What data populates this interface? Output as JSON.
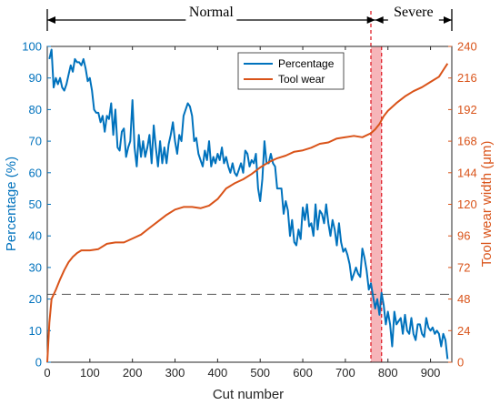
{
  "chart_data": {
    "type": "line",
    "xlabel": "Cut number",
    "xlim": [
      0,
      950
    ],
    "xticks": [
      0,
      100,
      200,
      300,
      400,
      500,
      600,
      700,
      800,
      900
    ],
    "y_left": {
      "label": "Percentage (%)",
      "lim": [
        0,
        100
      ],
      "ticks": [
        0,
        10,
        20,
        30,
        40,
        50,
        60,
        70,
        80,
        90,
        100
      ],
      "color": "#0072BD"
    },
    "y_right": {
      "label": "Tool wear width (μm)",
      "lim": [
        0,
        240
      ],
      "ticks": [
        0,
        24,
        48,
        72,
        96,
        120,
        144,
        168,
        192,
        216,
        240
      ],
      "color": "#D95319"
    },
    "threshold_percentage": 21.5,
    "severe_band_x": [
      760,
      785
    ],
    "regions": [
      {
        "label": "Normal",
        "x_start": 0,
        "x_end": 770
      },
      {
        "label": "Severe",
        "x_start": 770,
        "x_end": 950
      }
    ],
    "legend_position": "top-center",
    "series": [
      {
        "name": "Percentage",
        "axis": "left",
        "color": "#0072BD",
        "points": [
          [
            5,
            96
          ],
          [
            10,
            99
          ],
          [
            15,
            87
          ],
          [
            20,
            90
          ],
          [
            25,
            88
          ],
          [
            30,
            90
          ],
          [
            35,
            87
          ],
          [
            40,
            86
          ],
          [
            45,
            88
          ],
          [
            50,
            91
          ],
          [
            55,
            94
          ],
          [
            60,
            92
          ],
          [
            65,
            96
          ],
          [
            70,
            95
          ],
          [
            75,
            95
          ],
          [
            80,
            94
          ],
          [
            85,
            96
          ],
          [
            90,
            93
          ],
          [
            95,
            89
          ],
          [
            100,
            90
          ],
          [
            105,
            86
          ],
          [
            110,
            80
          ],
          [
            115,
            79
          ],
          [
            120,
            79
          ],
          [
            125,
            76
          ],
          [
            130,
            78
          ],
          [
            135,
            73
          ],
          [
            140,
            78
          ],
          [
            145,
            77
          ],
          [
            150,
            82
          ],
          [
            155,
            72
          ],
          [
            160,
            80
          ],
          [
            165,
            68
          ],
          [
            170,
            67
          ],
          [
            175,
            73
          ],
          [
            180,
            74
          ],
          [
            185,
            65
          ],
          [
            190,
            68
          ],
          [
            195,
            70
          ],
          [
            200,
            83
          ],
          [
            205,
            68
          ],
          [
            210,
            62
          ],
          [
            215,
            72
          ],
          [
            220,
            65
          ],
          [
            225,
            70
          ],
          [
            230,
            65
          ],
          [
            235,
            68
          ],
          [
            240,
            72
          ],
          [
            245,
            63
          ],
          [
            250,
            75
          ],
          [
            255,
            68
          ],
          [
            260,
            62
          ],
          [
            265,
            70
          ],
          [
            270,
            63
          ],
          [
            275,
            68
          ],
          [
            280,
            63
          ],
          [
            285,
            69
          ],
          [
            290,
            72
          ],
          [
            295,
            76
          ],
          [
            300,
            70
          ],
          [
            305,
            66
          ],
          [
            310,
            72
          ],
          [
            315,
            70
          ],
          [
            320,
            78
          ],
          [
            325,
            80
          ],
          [
            330,
            82
          ],
          [
            335,
            81
          ],
          [
            340,
            78
          ],
          [
            345,
            70
          ],
          [
            350,
            71
          ],
          [
            355,
            66
          ],
          [
            360,
            64
          ],
          [
            365,
            62
          ],
          [
            370,
            67
          ],
          [
            375,
            64
          ],
          [
            380,
            70
          ],
          [
            385,
            62
          ],
          [
            390,
            65
          ],
          [
            395,
            63
          ],
          [
            400,
            66
          ],
          [
            405,
            64
          ],
          [
            410,
            68
          ],
          [
            415,
            63
          ],
          [
            420,
            65
          ],
          [
            425,
            62
          ],
          [
            430,
            60
          ],
          [
            435,
            63
          ],
          [
            440,
            60
          ],
          [
            445,
            59
          ],
          [
            450,
            61
          ],
          [
            455,
            63
          ],
          [
            460,
            60
          ],
          [
            465,
            67
          ],
          [
            470,
            66
          ],
          [
            475,
            62
          ],
          [
            480,
            64
          ],
          [
            485,
            63
          ],
          [
            490,
            66
          ],
          [
            495,
            55
          ],
          [
            500,
            51
          ],
          [
            505,
            58
          ],
          [
            510,
            70
          ],
          [
            515,
            63
          ],
          [
            520,
            63
          ],
          [
            525,
            66
          ],
          [
            530,
            63
          ],
          [
            535,
            62
          ],
          [
            540,
            55
          ],
          [
            545,
            55
          ],
          [
            550,
            55
          ],
          [
            555,
            47
          ],
          [
            560,
            51
          ],
          [
            565,
            48
          ],
          [
            570,
            40
          ],
          [
            575,
            45
          ],
          [
            580,
            38
          ],
          [
            585,
            37
          ],
          [
            590,
            42
          ],
          [
            595,
            39
          ],
          [
            600,
            49
          ],
          [
            605,
            45
          ],
          [
            610,
            50
          ],
          [
            615,
            43
          ],
          [
            620,
            44
          ],
          [
            625,
            40
          ],
          [
            630,
            50
          ],
          [
            635,
            42
          ],
          [
            640,
            48
          ],
          [
            645,
            47
          ],
          [
            650,
            44
          ],
          [
            655,
            50
          ],
          [
            660,
            44
          ],
          [
            665,
            40
          ],
          [
            670,
            45
          ],
          [
            675,
            42
          ],
          [
            680,
            37
          ],
          [
            685,
            44
          ],
          [
            690,
            38
          ],
          [
            695,
            35
          ],
          [
            700,
            36
          ],
          [
            705,
            34
          ],
          [
            710,
            31
          ],
          [
            715,
            26
          ],
          [
            720,
            28
          ],
          [
            725,
            30
          ],
          [
            730,
            28
          ],
          [
            735,
            27
          ],
          [
            740,
            36
          ],
          [
            745,
            33
          ],
          [
            750,
            29
          ],
          [
            755,
            23
          ],
          [
            760,
            25
          ],
          [
            765,
            21
          ],
          [
            770,
            17
          ],
          [
            775,
            20
          ],
          [
            780,
            15
          ],
          [
            785,
            22
          ],
          [
            790,
            18
          ],
          [
            795,
            12
          ],
          [
            800,
            16
          ],
          [
            805,
            12
          ],
          [
            810,
            5
          ],
          [
            815,
            16
          ],
          [
            820,
            12
          ],
          [
            825,
            13
          ],
          [
            830,
            14
          ],
          [
            835,
            9
          ],
          [
            840,
            15
          ],
          [
            845,
            10
          ],
          [
            850,
            9
          ],
          [
            855,
            14
          ],
          [
            860,
            9
          ],
          [
            865,
            7
          ],
          [
            870,
            12
          ],
          [
            875,
            12
          ],
          [
            880,
            9
          ],
          [
            885,
            8
          ],
          [
            890,
            14
          ],
          [
            895,
            11
          ],
          [
            900,
            10
          ],
          [
            905,
            11
          ],
          [
            910,
            9
          ],
          [
            915,
            10
          ],
          [
            920,
            9
          ],
          [
            925,
            5
          ],
          [
            930,
            9
          ],
          [
            935,
            7
          ],
          [
            940,
            1
          ]
        ]
      },
      {
        "name": "Tool wear",
        "axis": "right",
        "color": "#D95319",
        "points": [
          [
            0,
            0
          ],
          [
            5,
            30
          ],
          [
            10,
            48
          ],
          [
            20,
            55
          ],
          [
            30,
            63
          ],
          [
            40,
            70
          ],
          [
            50,
            76
          ],
          [
            60,
            80
          ],
          [
            70,
            83
          ],
          [
            80,
            85
          ],
          [
            100,
            85
          ],
          [
            120,
            86
          ],
          [
            140,
            90
          ],
          [
            160,
            91
          ],
          [
            180,
            91
          ],
          [
            200,
            94
          ],
          [
            220,
            97
          ],
          [
            240,
            102
          ],
          [
            260,
            107
          ],
          [
            280,
            112
          ],
          [
            300,
            116
          ],
          [
            320,
            118
          ],
          [
            340,
            118
          ],
          [
            360,
            117
          ],
          [
            380,
            119
          ],
          [
            400,
            124
          ],
          [
            420,
            132
          ],
          [
            440,
            136
          ],
          [
            460,
            139
          ],
          [
            480,
            143
          ],
          [
            500,
            148
          ],
          [
            520,
            152
          ],
          [
            540,
            155
          ],
          [
            560,
            157
          ],
          [
            580,
            160
          ],
          [
            600,
            161
          ],
          [
            620,
            163
          ],
          [
            640,
            166
          ],
          [
            660,
            167
          ],
          [
            680,
            170
          ],
          [
            700,
            171
          ],
          [
            720,
            172
          ],
          [
            740,
            171
          ],
          [
            760,
            174
          ],
          [
            770,
            177
          ],
          [
            780,
            181
          ],
          [
            790,
            187
          ],
          [
            800,
            191
          ],
          [
            820,
            197
          ],
          [
            840,
            202
          ],
          [
            860,
            206
          ],
          [
            880,
            209
          ],
          [
            900,
            213
          ],
          [
            920,
            217
          ],
          [
            930,
            222
          ],
          [
            940,
            227
          ]
        ]
      }
    ]
  }
}
